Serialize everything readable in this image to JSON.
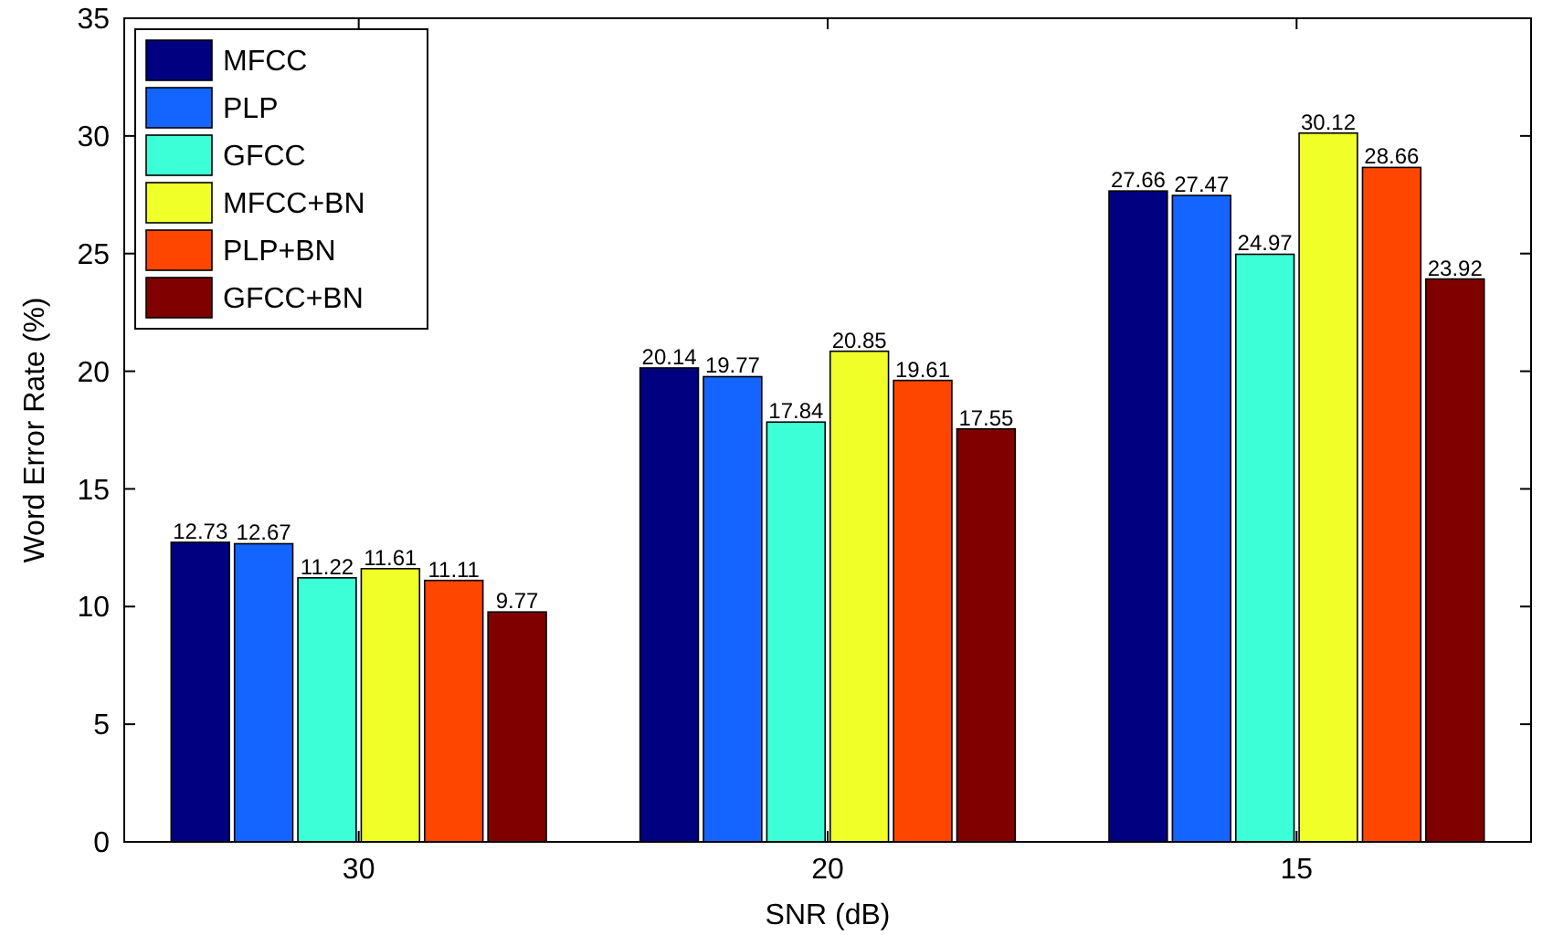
{
  "chart_data": {
    "type": "bar",
    "xlabel": "SNR (dB)",
    "ylabel": "Word Error Rate (%)",
    "categories": [
      "30",
      "20",
      "15"
    ],
    "series": [
      {
        "name": "MFCC",
        "color": "#000080",
        "values": [
          12.73,
          20.14,
          27.66
        ]
      },
      {
        "name": "PLP",
        "color": "#1464ff",
        "values": [
          12.67,
          19.77,
          27.47
        ]
      },
      {
        "name": "GFCC",
        "color": "#3cffd8",
        "values": [
          11.22,
          17.84,
          24.97
        ]
      },
      {
        "name": "MFCC+BN",
        "color": "#f0ff28",
        "values": [
          11.61,
          20.85,
          30.12
        ]
      },
      {
        "name": "PLP+BN",
        "color": "#ff4600",
        "values": [
          11.11,
          19.61,
          28.66
        ]
      },
      {
        "name": "GFCC+BN",
        "color": "#800000",
        "values": [
          9.77,
          17.55,
          23.92
        ]
      }
    ],
    "ylim": [
      0,
      35
    ],
    "yticks": [
      0,
      5,
      10,
      15,
      20,
      25,
      30,
      35
    ],
    "data_labels": true,
    "legend": "top left",
    "grid": false
  }
}
